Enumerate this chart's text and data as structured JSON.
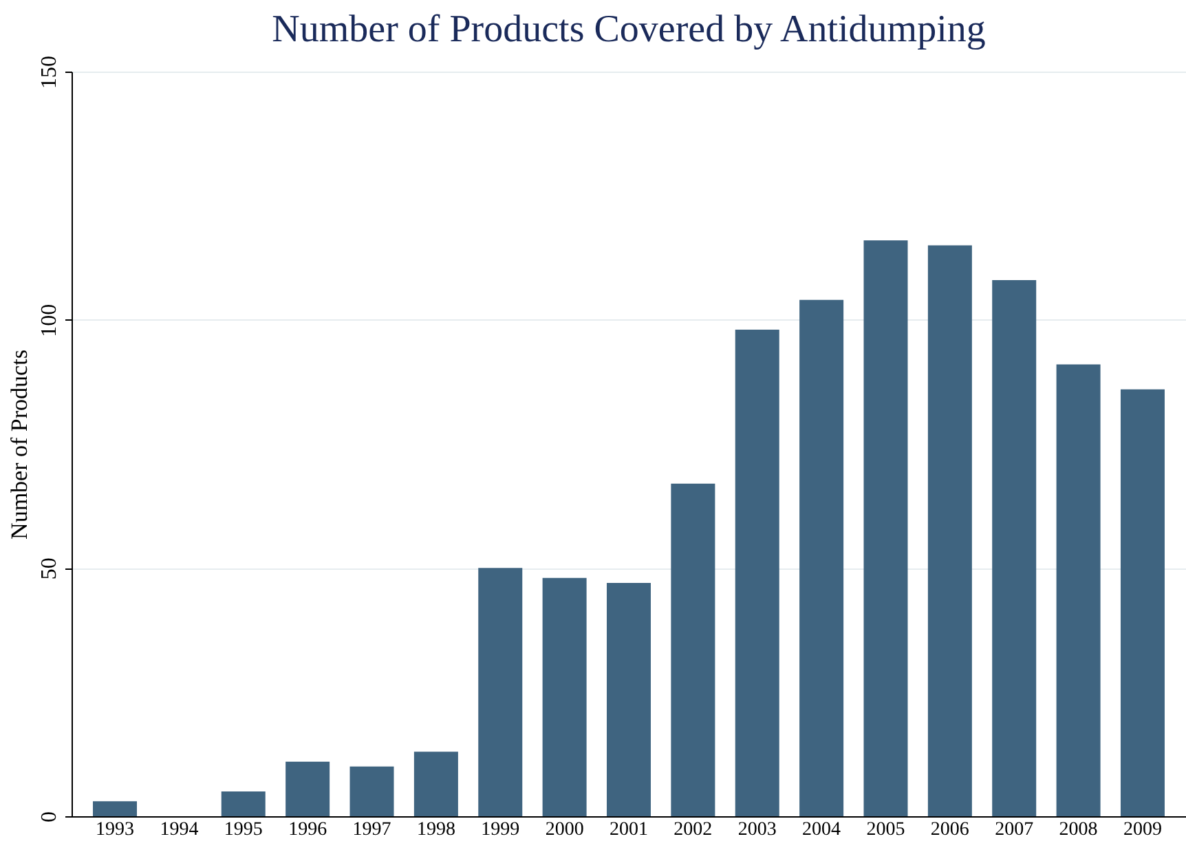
{
  "chart_data": {
    "type": "bar",
    "title": "Number of Products Covered by Antidumping",
    "ylabel": "Number of Products",
    "categories": [
      "1993",
      "1994",
      "1995",
      "1996",
      "1997",
      "1998",
      "1999",
      "2000",
      "2001",
      "2002",
      "2003",
      "2004",
      "2005",
      "2006",
      "2007",
      "2008",
      "2009"
    ],
    "values": [
      3,
      0,
      5,
      11,
      10,
      13,
      50,
      48,
      47,
      67,
      98,
      104,
      116,
      115,
      108,
      91,
      86
    ],
    "color": "#3f6480",
    "ylim": [
      0,
      150
    ],
    "yticks": [
      0,
      50,
      100,
      150
    ],
    "grid": "y"
  }
}
